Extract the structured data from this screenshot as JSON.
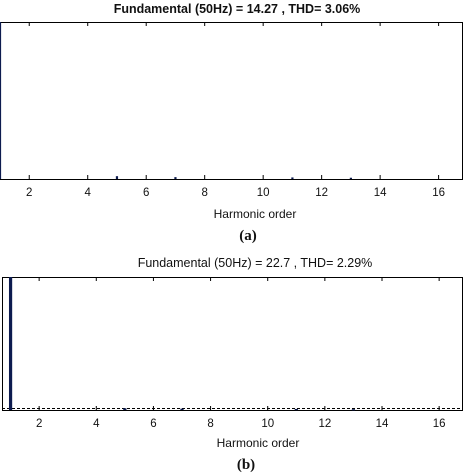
{
  "colors": {
    "bar": "#0d1b4f",
    "axis": "#000000"
  },
  "chart_data": [
    {
      "type": "bar",
      "panel_label": "(a)",
      "title": "Fundamental (50Hz) = 14.27 , THD= 3.06%",
      "xlabel": "Harmonic order",
      "ylabel": "",
      "xticks": [
        2,
        4,
        6,
        8,
        10,
        12,
        14,
        16
      ],
      "xlim": [
        1,
        16.8
      ],
      "ylim": [
        0,
        100
      ],
      "grid": false,
      "x": [
        1,
        5,
        7,
        11,
        13
      ],
      "values": [
        100,
        1.8,
        1.2,
        1.0,
        0.8
      ],
      "dashed_baseline": false
    },
    {
      "type": "bar",
      "panel_label": "(b)",
      "title": "Fundamental (50Hz) = 22.7 , THD= 2.29%",
      "xlabel": "Harmonic order",
      "ylabel": "",
      "xticks": [
        2,
        4,
        6,
        8,
        10,
        12,
        14,
        16
      ],
      "xlim": [
        0.7,
        16.8
      ],
      "ylim": [
        0,
        100
      ],
      "grid": false,
      "x": [
        1,
        5,
        7,
        11,
        13
      ],
      "values": [
        100,
        1.3,
        1.0,
        0.8,
        0.6
      ],
      "dashed_baseline": true
    }
  ]
}
